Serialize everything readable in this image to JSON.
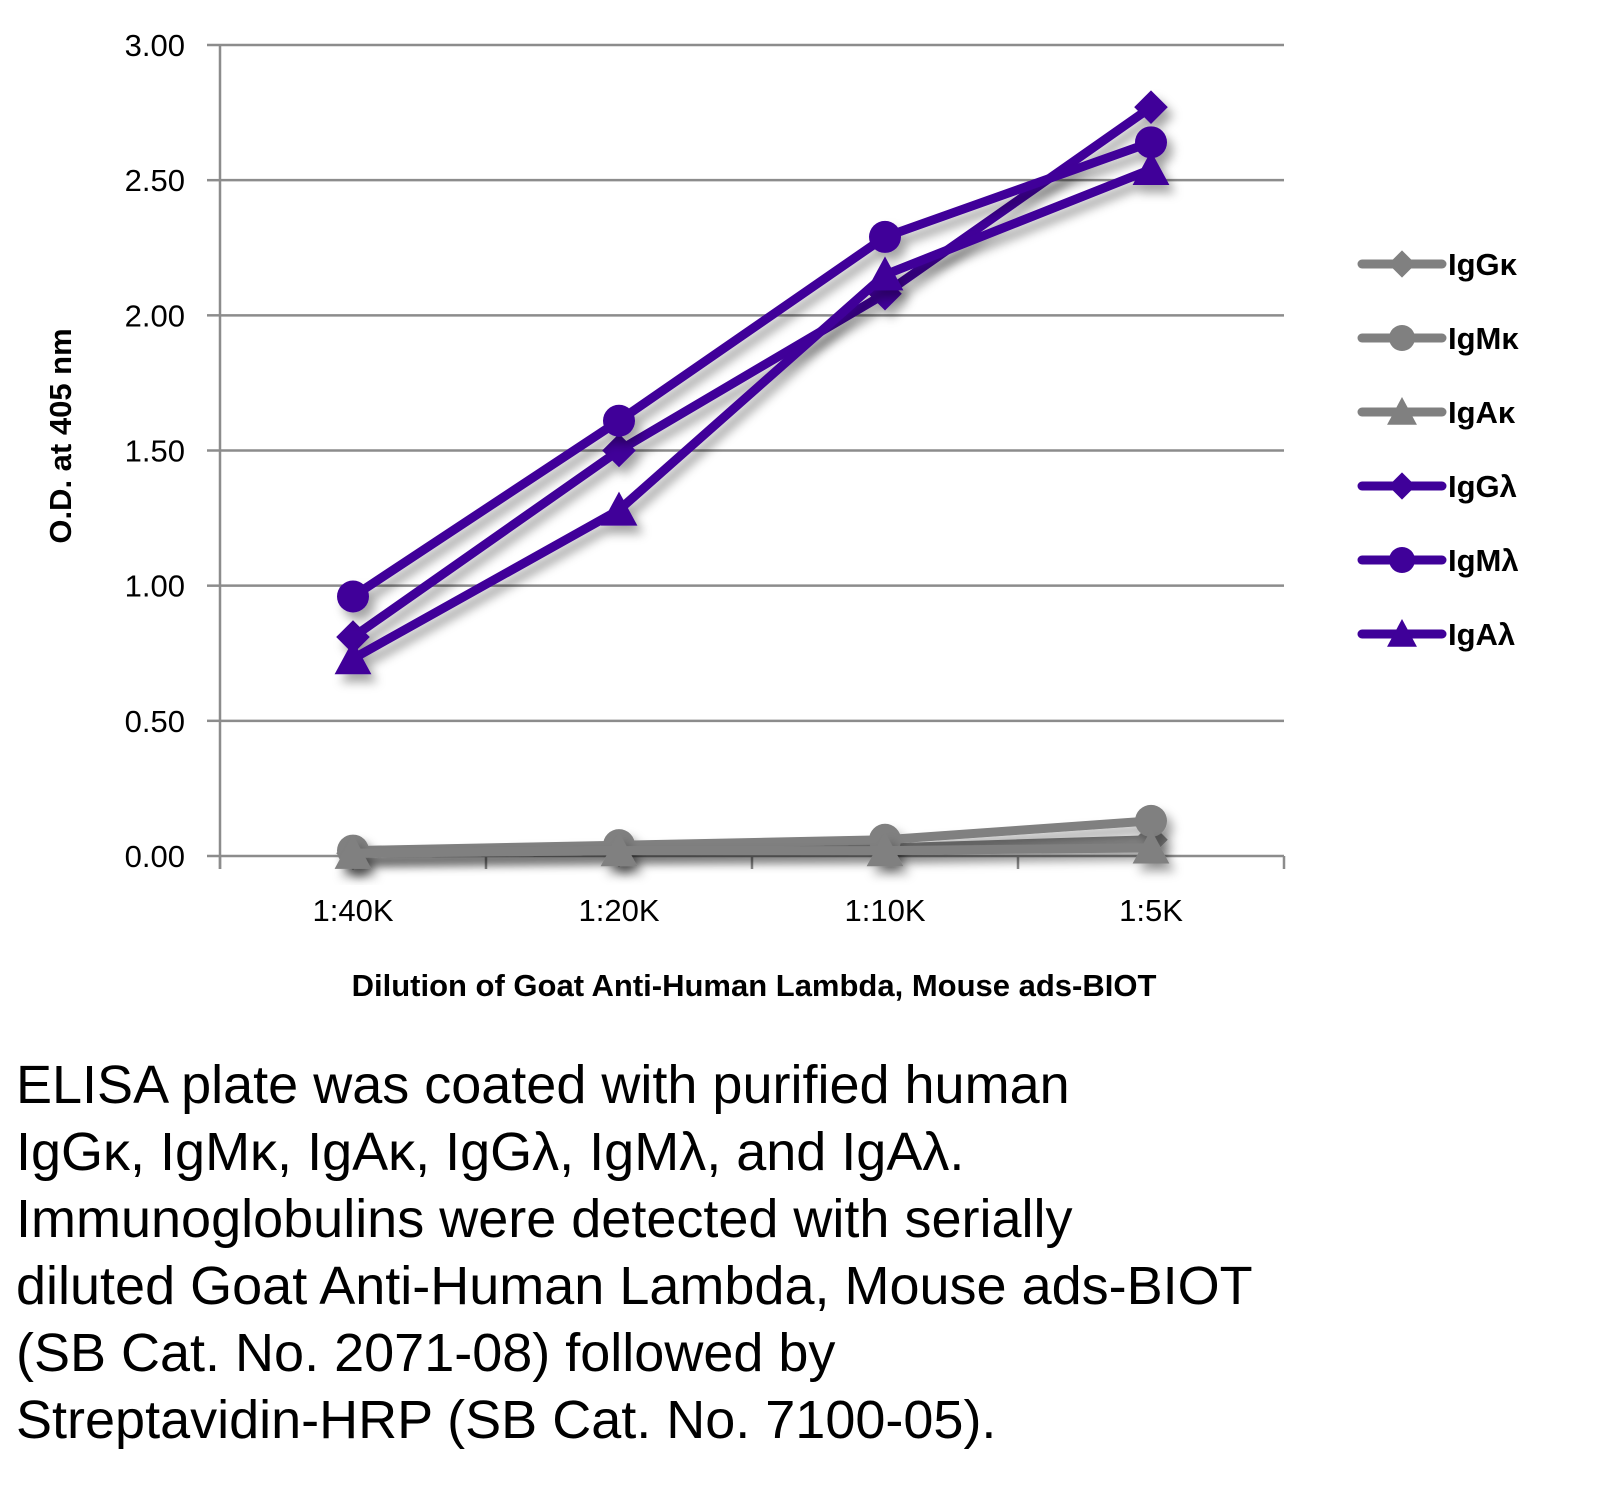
{
  "chart_data": {
    "type": "line",
    "title": "",
    "xlabel": "Dilution of Goat Anti-Human Lambda, Mouse ads-BIOT",
    "ylabel": "O.D. at 405 nm",
    "categories": [
      "1:40K",
      "1:20K",
      "1:10K",
      "1:5K"
    ],
    "ylim": [
      0,
      3.0
    ],
    "yticks": [
      "0.00",
      "0.50",
      "1.00",
      "1.50",
      "2.00",
      "2.50",
      "3.00"
    ],
    "ytick_values": [
      0,
      0.5,
      1.0,
      1.5,
      2.0,
      2.5,
      3.0
    ],
    "grid": true,
    "legend_position": "right",
    "series": [
      {
        "name": "IgGκ",
        "marker": "diamond",
        "color": "#808080",
        "values": [
          0.01,
          0.02,
          0.03,
          0.06
        ]
      },
      {
        "name": "IgMκ",
        "marker": "circle",
        "color": "#808080",
        "values": [
          0.02,
          0.04,
          0.06,
          0.13
        ]
      },
      {
        "name": "IgAκ",
        "marker": "triangle",
        "color": "#808080",
        "values": [
          0.01,
          0.02,
          0.02,
          0.03
        ]
      },
      {
        "name": "IgGλ",
        "marker": "diamond",
        "color": "#3f0199",
        "values": [
          0.81,
          1.5,
          2.08,
          2.77
        ]
      },
      {
        "name": "IgMλ",
        "marker": "circle",
        "color": "#3f0199",
        "values": [
          0.96,
          1.61,
          2.29,
          2.64
        ]
      },
      {
        "name": "IgAλ",
        "marker": "triangle",
        "color": "#3f0199",
        "values": [
          0.73,
          1.28,
          2.15,
          2.54
        ]
      }
    ]
  },
  "caption": {
    "lines": [
      "ELISA plate was coated with purified human",
      "IgGκ, IgMκ, IgAκ, IgGλ, IgMλ, and IgAλ.",
      "Immunoglobulins were detected with serially",
      "diluted Goat Anti-Human Lambda, Mouse ads-BIOT",
      "(SB Cat. No. 2071-08) followed by",
      "Streptavidin-HRP (SB Cat. No. 7100-05)."
    ]
  },
  "colors": {
    "gridline": "#8c8c8c",
    "kappa_series": "#808080",
    "lambda_series": "#3f0199"
  }
}
